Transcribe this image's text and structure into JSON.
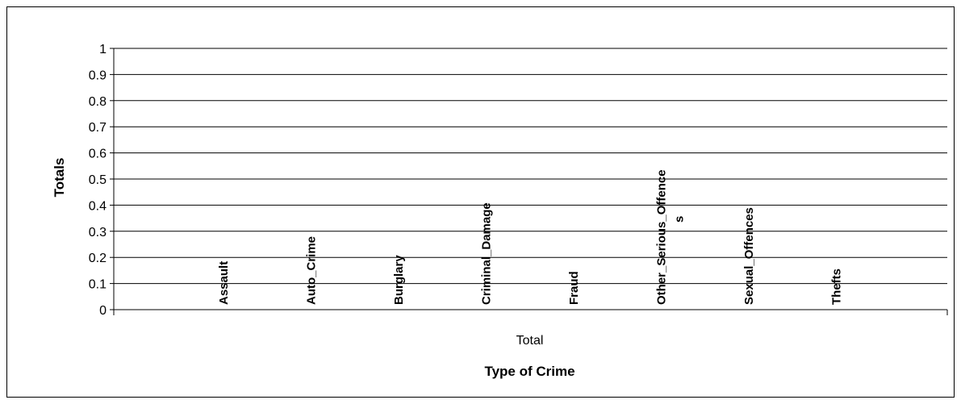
{
  "chart_data": {
    "type": "bar",
    "title": "",
    "xlabel": "Type of Crime",
    "ylabel": "Totals",
    "category_group_label": "Total",
    "categories": [
      "Assault",
      "Auto_Crime",
      "Burglary",
      "Criminal_Damage",
      "Fraud",
      "Other_Serious_Offence|s",
      "Sexual_Offences",
      "Thefts"
    ],
    "series": [
      {
        "values": [
          0,
          0,
          0,
          0,
          0,
          0,
          0,
          0
        ]
      }
    ],
    "yticks": [
      "0",
      "0.1",
      "0.2",
      "0.3",
      "0.4",
      "0.5",
      "0.6",
      "0.7",
      "0.8",
      "0.9",
      "1"
    ],
    "ylim": [
      0,
      1
    ],
    "grid": true,
    "legend": "none",
    "colors": {
      "grid": "#000000",
      "axis": "#000000",
      "background": "#ffffff"
    }
  }
}
